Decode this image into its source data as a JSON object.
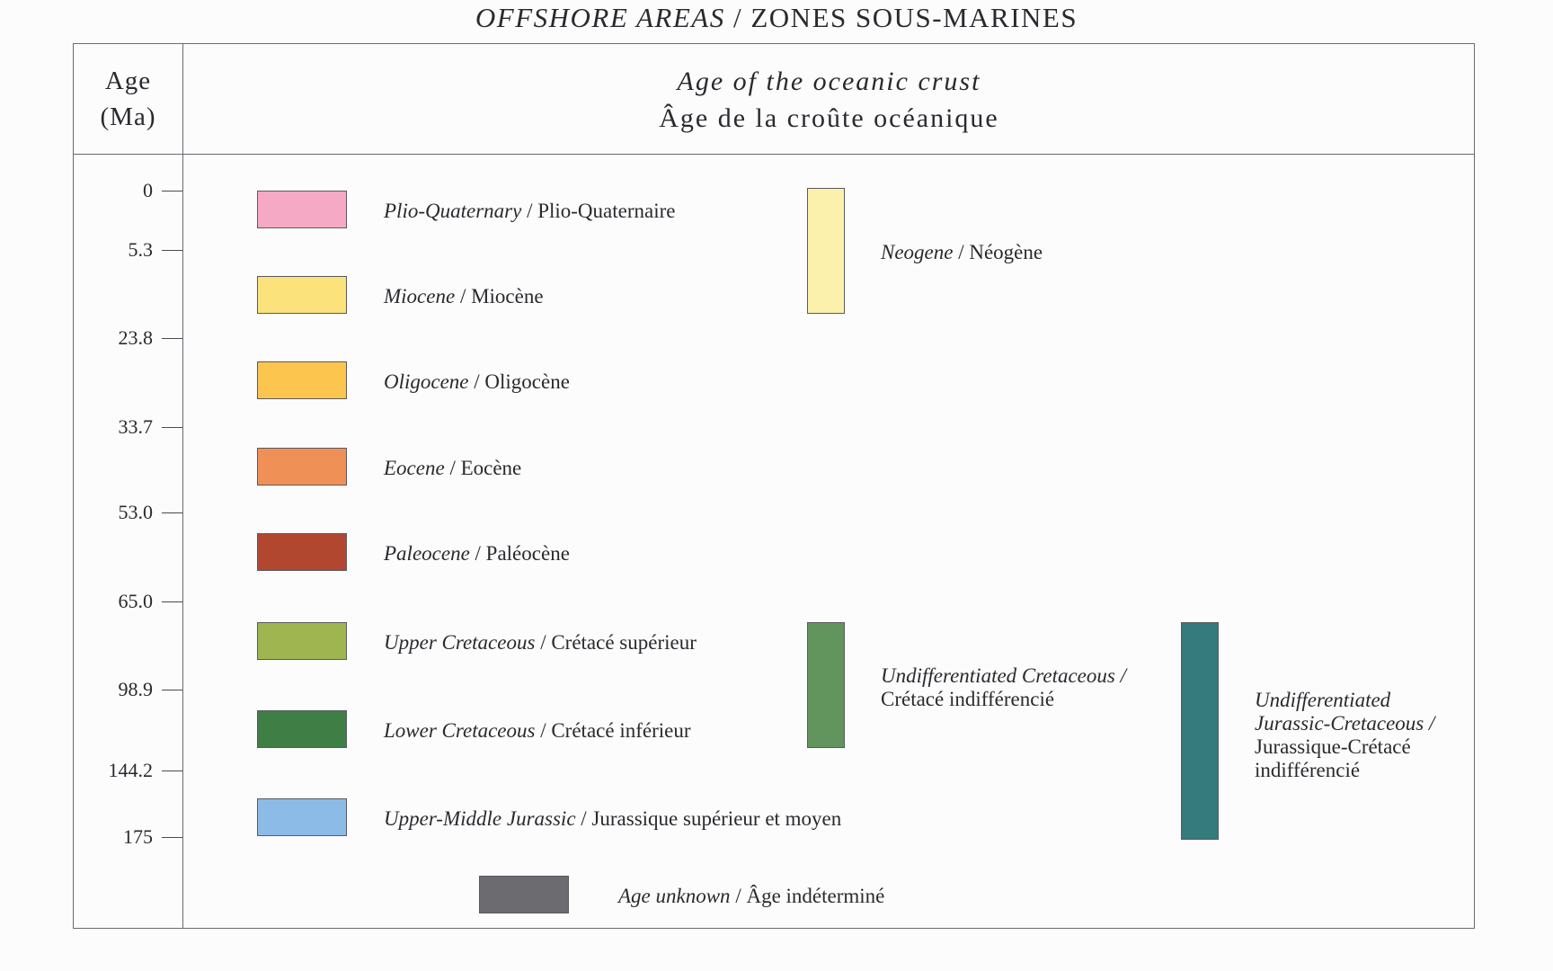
{
  "title": {
    "en": "OFFSHORE AREAS",
    "sep": " / ",
    "fr": "ZONES SOUS-MARINES"
  },
  "header": {
    "age_line1": "Age",
    "age_line2": "(Ma)",
    "crust_en": "Age of the oceanic crust",
    "crust_fr": "Âge de la croûte océanique"
  },
  "ticks": [
    "0",
    "5.3",
    "23.8",
    "33.7",
    "53.0",
    "65.0",
    "98.9",
    "144.2",
    "175"
  ],
  "units": [
    {
      "en": "Plio-Quaternary",
      "fr": "Plio-Quaternaire",
      "color": "#f6a9c4"
    },
    {
      "en": "Miocene",
      "fr": "Miocène",
      "color": "#fbe27a"
    },
    {
      "en": "Oligocene",
      "fr": "Oligocène",
      "color": "#fbc54e"
    },
    {
      "en": "Eocene",
      "fr": "Eocène",
      "color": "#ef9156"
    },
    {
      "en": "Paleocene",
      "fr": "Paléocène",
      "color": "#b2472f"
    },
    {
      "en": "Upper Cretaceous",
      "fr": "Crétacé supérieur",
      "color": "#9fb650"
    },
    {
      "en": "Lower Cretaceous",
      "fr": "Crétacé inférieur",
      "color": "#3f7e45"
    },
    {
      "en": "Upper-Middle Jurassic",
      "fr": "Jurassique supérieur et moyen",
      "color": "#8dbbe8"
    }
  ],
  "unknown": {
    "en": "Age unknown",
    "fr": "Âge indéterminé",
    "color": "#6b6b70"
  },
  "groups": {
    "neogene": {
      "en": "Neogene",
      "fr": "Néogène",
      "color": "#fcf0ad"
    },
    "cretaceous": {
      "en": "Undifferentiated Cretaceous /",
      "fr": "Crétacé indifférencié",
      "color": "#62945d"
    },
    "jurassic_cretaceous": {
      "en_line1": "Undifferentiated",
      "en_line2": "Jurassic-Cretaceous /",
      "fr_line1": "Jurassique-Crétacé",
      "fr_line2": "indifférencié",
      "color": "#357a7c"
    }
  },
  "separator": " / "
}
